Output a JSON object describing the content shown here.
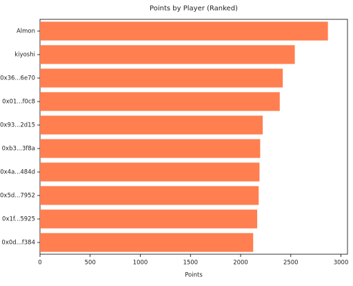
{
  "chart_data": {
    "type": "barh",
    "title": "Points by Player (Ranked)",
    "xlabel": "Points",
    "categories": [
      "Almon",
      "kiyoshi",
      "0x36...6e70",
      "0x01...f0c8",
      "0x93...2d15",
      "0xb3...3f8a",
      "0x4a...484d",
      "0x5d...7952",
      "0x1f...5925",
      "0x0d...f384"
    ],
    "values": [
      2870,
      2540,
      2420,
      2390,
      2220,
      2195,
      2188,
      2180,
      2165,
      2125
    ],
    "color": "#ff7f50",
    "xlim": [
      0,
      3065
    ],
    "xticks": [
      0,
      500,
      1000,
      1500,
      2000,
      2500,
      3000
    ],
    "grid": false
  }
}
